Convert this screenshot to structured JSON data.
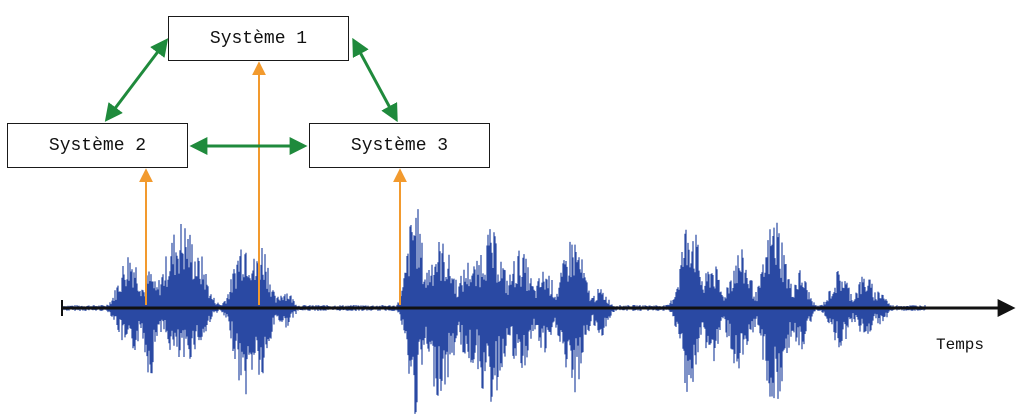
{
  "diagram": {
    "systems": [
      {
        "label": "Système 1"
      },
      {
        "label": "Système 2"
      },
      {
        "label": "Système 3"
      }
    ],
    "axis_label": "Temps",
    "colors": {
      "interaction_arrow": "#1f8a3c",
      "input_arrow": "#f29a2e",
      "waveform": "#2a49a3",
      "axis": "#111111",
      "box_border": "#1a1a1a"
    },
    "links": [
      {
        "from": "Système 2",
        "to": "Système 1",
        "type": "bidirectional"
      },
      {
        "from": "Système 1",
        "to": "Système 3",
        "type": "bidirectional"
      },
      {
        "from": "Système 2",
        "to": "Système 3",
        "type": "bidirectional"
      },
      {
        "from": "signal",
        "to": "Système 2",
        "type": "input"
      },
      {
        "from": "signal",
        "to": "Système 1",
        "type": "input"
      },
      {
        "from": "signal",
        "to": "Système 3",
        "type": "input"
      }
    ]
  }
}
